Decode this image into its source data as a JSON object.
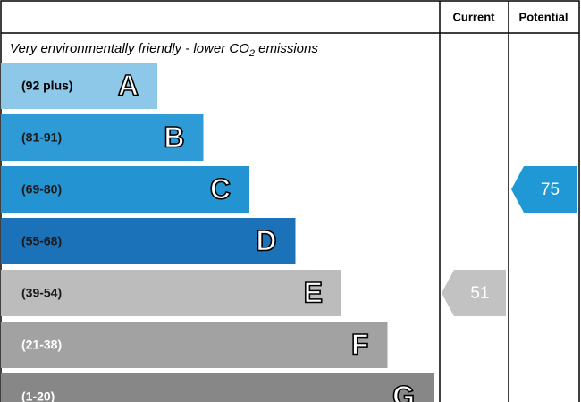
{
  "header": {
    "current": "Current",
    "potential": "Potential"
  },
  "caption": [
    "Very environmentally friendly - lower CO",
    "2",
    " emissions"
  ],
  "bands": [
    {
      "range": "(92 plus)",
      "letter": "A",
      "color": "#8dc8e8",
      "text_color": "#000000"
    },
    {
      "range": "(81-91)",
      "letter": "B",
      "color": "#2e9bd7",
      "text_color": "#1a1a1a"
    },
    {
      "range": "(69-80)",
      "letter": "C",
      "color": "#2393d2",
      "text_color": "#1a1a1a"
    },
    {
      "range": "(55-68)",
      "letter": "D",
      "color": "#1b72b8",
      "text_color": "#1a1a1a"
    },
    {
      "range": "(39-54)",
      "letter": "E",
      "color": "#bcbcbc",
      "text_color": "#1a1a1a"
    },
    {
      "range": "(21-38)",
      "letter": "F",
      "color": "#a2a2a2",
      "text_color": "#ffffff"
    },
    {
      "range": "(1-20)",
      "letter": "G",
      "color": "#878787",
      "text_color": "#ffffff"
    }
  ],
  "current": {
    "value": 51,
    "color": "#c2c2c2"
  },
  "potential": {
    "value": 75,
    "color": "#1f98d5"
  }
}
